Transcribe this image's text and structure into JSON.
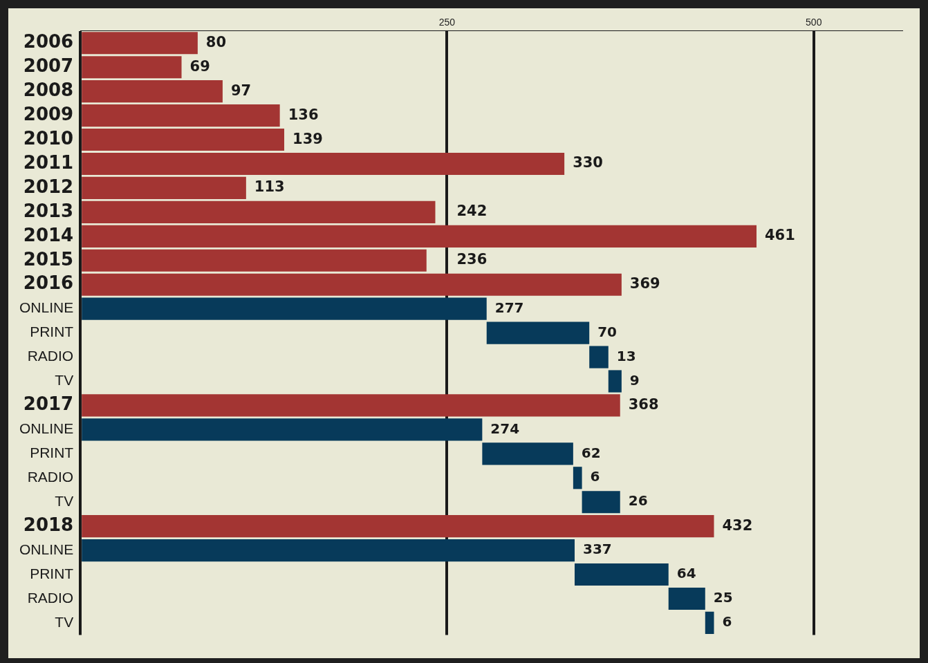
{
  "chart_data": {
    "type": "bar",
    "orientation": "horizontal",
    "categories": [
      "2006",
      "2007",
      "2008",
      "2009",
      "2010",
      "2011",
      "2012",
      "2013",
      "2014",
      "2015",
      "2016",
      "ONLINE",
      "PRINT",
      "RADIO",
      "TV",
      "2017",
      "ONLINE",
      "PRINT",
      "RADIO",
      "TV",
      "2018",
      "ONLINE",
      "PRINT",
      "RADIO",
      "TV"
    ],
    "values": [
      80,
      69,
      97,
      136,
      139,
      330,
      113,
      242,
      461,
      236,
      369,
      277,
      70,
      13,
      9,
      368,
      274,
      62,
      6,
      26,
      432,
      337,
      64,
      25,
      6
    ],
    "base": [
      0,
      0,
      0,
      0,
      0,
      0,
      0,
      0,
      0,
      0,
      0,
      0,
      277,
      347,
      360,
      0,
      0,
      274,
      336,
      342,
      0,
      0,
      337,
      401,
      426
    ],
    "colors": [
      "#a33533",
      "#a33533",
      "#a33533",
      "#a33533",
      "#a33533",
      "#a33533",
      "#a33533",
      "#a33533",
      "#a33533",
      "#a33533",
      "#a33533",
      "#073a5a",
      "#073a5a",
      "#073a5a",
      "#073a5a",
      "#a33533",
      "#073a5a",
      "#073a5a",
      "#073a5a",
      "#073a5a",
      "#a33533",
      "#073a5a",
      "#073a5a",
      "#073a5a",
      "#073a5a"
    ],
    "xlim": [
      0,
      560
    ],
    "xticks": [
      {
        "value": 0,
        "label": null
      },
      250,
      500
    ],
    "grid": "x",
    "legend": false,
    "data_labels": true
  }
}
